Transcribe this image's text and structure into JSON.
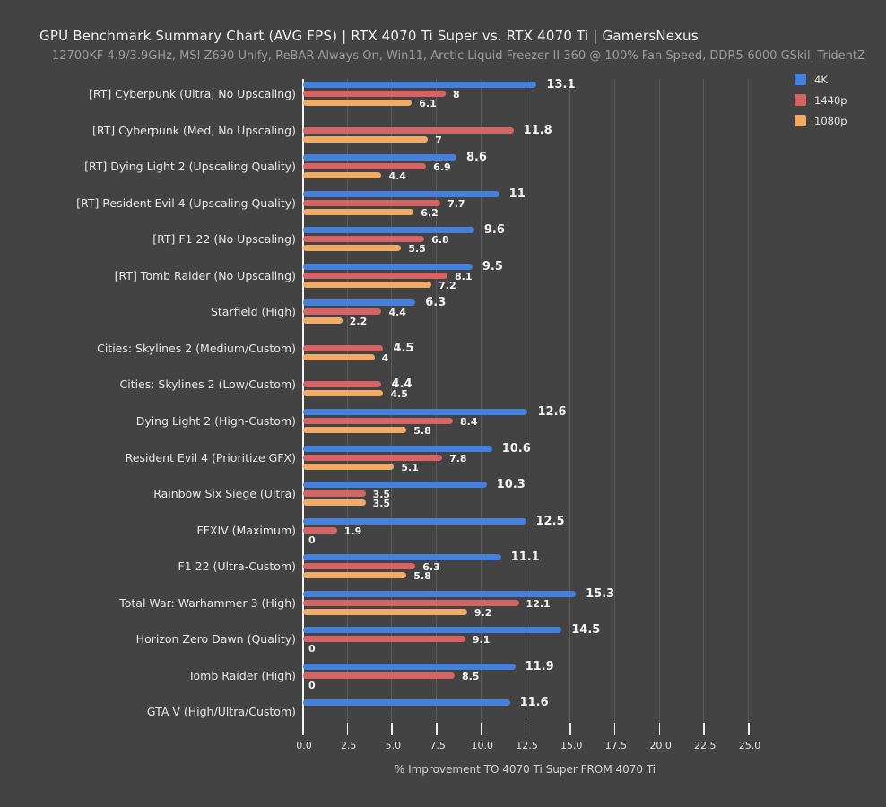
{
  "header": {
    "title": "GPU Benchmark Summary Chart (AVG FPS) | RTX 4070 Ti Super vs. RTX 4070 Ti | GamersNexus",
    "subtitle": "12700KF 4.9/3.9GHz, MSI Z690 Unify, ReBAR Always On, Win11, Arctic Liquid Freezer II 360 @ 100% Fan Speed, DDR5-6000 GSkill TridentZ"
  },
  "colors": {
    "background": "#434343",
    "grid": "#5B5B5B",
    "axis": "#F5F5F5",
    "series_4k": "#4480DC",
    "series_1440p": "#D76464",
    "series_1080p": "#F0AB67"
  },
  "legend": {
    "position": "top-right",
    "items": [
      {
        "label": "4K",
        "color": "#4480DC"
      },
      {
        "label": "1440p",
        "color": "#D76464"
      },
      {
        "label": "1080p",
        "color": "#F0AB67"
      }
    ]
  },
  "chart_data": {
    "type": "bar",
    "orientation": "horizontal",
    "title": "GPU Benchmark Summary Chart (AVG FPS) | RTX 4070 Ti Super vs. RTX 4070 Ti | GamersNexus",
    "subtitle": "12700KF 4.9/3.9GHz, MSI Z690 Unify, ReBAR Always On, Win11, Arctic Liquid Freezer II 360 @ 100% Fan Speed, DDR5-6000 GSkill TridentZ",
    "xlabel": "% Improvement TO 4070 Ti Super FROM 4070 Ti",
    "xlim": [
      0,
      25
    ],
    "xticks": [
      "0.0",
      "2.5",
      "5.0",
      "7.5",
      "10.0",
      "12.5",
      "15.0",
      "17.5",
      "20.0",
      "22.5",
      "25.0"
    ],
    "grid": "vertical-on",
    "legend_position": "top-right",
    "categories": [
      "[RT] Cyberpunk (Ultra, No Upscaling)",
      "[RT] Cyberpunk (Med, No Upscaling)",
      "[RT] Dying Light 2 (Upscaling Quality)",
      "[RT] Resident Evil 4 (Upscaling Quality)",
      "[RT] F1 22 (No Upscaling)",
      "[RT] Tomb Raider (No Upscaling)",
      "Starfield (High)",
      "Cities: Skylines 2 (Medium/Custom)",
      "Cities: Skylines 2 (Low/Custom)",
      "Dying Light 2 (High-Custom)",
      "Resident Evil 4 (Prioritize GFX)",
      "Rainbow Six Siege (Ultra)",
      "FFXIV (Maximum)",
      "F1 22 (Ultra-Custom)",
      "Total War: Warhammer 3 (High)",
      "Horizon Zero Dawn (Quality)",
      "Tomb Raider (High)",
      "GTA V (High/Ultra/Custom)"
    ],
    "series": [
      {
        "name": "4K",
        "color": "#4480DC",
        "values": [
          13.1,
          null,
          8.6,
          11,
          9.6,
          9.5,
          6.3,
          null,
          null,
          12.6,
          10.6,
          10.3,
          12.5,
          11.1,
          15.3,
          14.5,
          11.9,
          11.6
        ]
      },
      {
        "name": "1440p",
        "color": "#D76464",
        "values": [
          8,
          11.8,
          6.9,
          7.7,
          6.8,
          8.1,
          4.4,
          4.5,
          4.4,
          8.4,
          7.8,
          3.5,
          1.9,
          6.3,
          12.1,
          9.1,
          8.5,
          null
        ]
      },
      {
        "name": "1080p",
        "color": "#F0AB67",
        "values": [
          6.1,
          7,
          4.4,
          6.2,
          5.5,
          7.2,
          2.2,
          4,
          4.5,
          5.8,
          5.1,
          3.5,
          0,
          5.8,
          9.2,
          0,
          0,
          null
        ]
      }
    ]
  }
}
